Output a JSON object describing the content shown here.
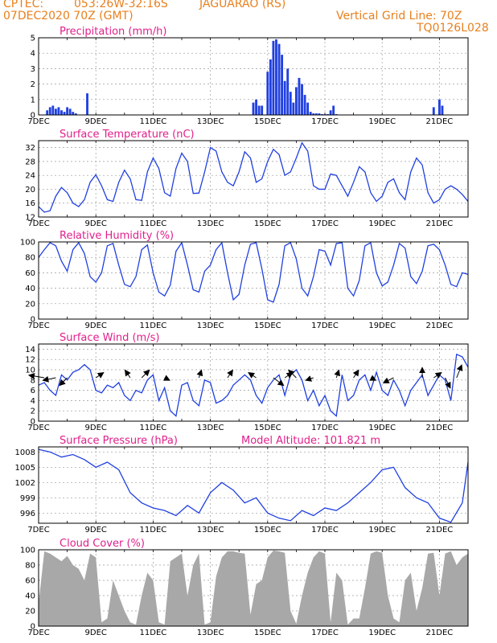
{
  "header": {
    "org": "CPTEC:",
    "coords": "053:26W-32:16S",
    "station": "JAGUARAO (RS)",
    "date": "07DEC2020 70Z (GMT)",
    "grid_note": "Vertical Grid Line: 70Z",
    "model_code": "TQ0126L028",
    "model_altitude": "Model Altitude: 101.821 m"
  },
  "colors": {
    "header": "#e8801e",
    "title": "#e0208c",
    "line": "#2040e0",
    "bar": "#2040e0",
    "cloud": "#a8a8a8",
    "arrow": "#000000"
  },
  "x_ticks": [
    "7DEC",
    "9DEC",
    "11DEC",
    "13DEC",
    "15DEC",
    "17DEC",
    "19DEC",
    "21DEC"
  ],
  "chart_data": [
    {
      "type": "bar",
      "title": "Precipitation (mm/h)",
      "ylim": [
        0,
        5
      ],
      "y_ticks": [
        "0",
        "1",
        "2",
        "3",
        "4",
        "5"
      ],
      "x_unit": "day offset from 7DEC 00Z",
      "x": [
        0.3,
        0.4,
        0.5,
        0.6,
        0.7,
        0.8,
        0.9,
        1.0,
        1.1,
        1.2,
        1.3,
        1.7,
        7.5,
        7.6,
        7.7,
        7.8,
        8.0,
        8.1,
        8.2,
        8.3,
        8.4,
        8.5,
        8.6,
        8.7,
        8.8,
        8.9,
        9.0,
        9.1,
        9.2,
        9.3,
        9.4,
        9.5,
        9.6,
        9.7,
        9.8,
        9.9,
        10.0,
        10.1,
        10.2,
        10.3,
        10.4,
        13.8,
        14.0,
        14.1
      ],
      "values": [
        0.3,
        0.5,
        0.6,
        0.4,
        0.5,
        0.3,
        0.2,
        0.5,
        0.4,
        0.2,
        0.1,
        1.4,
        0.8,
        1.0,
        0.6,
        0.6,
        2.8,
        3.6,
        4.8,
        4.9,
        4.6,
        3.9,
        2.2,
        3.0,
        1.5,
        0.8,
        1.8,
        2.4,
        2.0,
        1.3,
        0.8,
        0.2,
        0.1,
        0.1,
        0.1,
        0.05,
        0.05,
        0.05,
        0.3,
        0.6,
        0.05,
        0.5,
        1.0,
        0.6
      ]
    },
    {
      "type": "line",
      "title": "Surface Temperature (nC)",
      "ylim": [
        12,
        34
      ],
      "y_ticks": [
        "12",
        "16",
        "20",
        "24",
        "28",
        "32"
      ],
      "x": [
        0,
        0.2,
        0.4,
        0.6,
        0.8,
        1.0,
        1.2,
        1.4,
        1.6,
        1.8,
        2.0,
        2.2,
        2.4,
        2.6,
        2.8,
        3.0,
        3.2,
        3.4,
        3.6,
        3.8,
        4.0,
        4.2,
        4.4,
        4.6,
        4.8,
        5.0,
        5.2,
        5.4,
        5.6,
        5.8,
        6.0,
        6.2,
        6.4,
        6.6,
        6.8,
        7.0,
        7.2,
        7.4,
        7.6,
        7.8,
        8.0,
        8.2,
        8.4,
        8.6,
        8.8,
        9.0,
        9.2,
        9.4,
        9.6,
        9.8,
        10.0,
        10.2,
        10.4,
        10.6,
        10.8,
        11.0,
        11.2,
        11.4,
        11.6,
        11.8,
        12.0,
        12.2,
        12.4,
        12.6,
        12.8,
        13.0,
        13.2,
        13.4,
        13.6,
        13.8,
        14.0,
        14.2,
        14.4,
        14.6,
        14.8,
        15.0
      ],
      "values": [
        15,
        13.4,
        13.8,
        18,
        20.5,
        19,
        16,
        15,
        17,
        22,
        24.2,
        21,
        17,
        16.5,
        22,
        25.5,
        23,
        17,
        16.8,
        25,
        29,
        26,
        19,
        18,
        26,
        30.4,
        28,
        18.8,
        18.9,
        25,
        32,
        31,
        25,
        22,
        21,
        25,
        30.8,
        29,
        22,
        23,
        28,
        31.5,
        30,
        24,
        25,
        29,
        33.4,
        31,
        21,
        20,
        20,
        24.4,
        24,
        21,
        18,
        22,
        26.5,
        25,
        19,
        16.5,
        18,
        22,
        23,
        19,
        17,
        25,
        29,
        27,
        19,
        16,
        17,
        20,
        21,
        20,
        18.5,
        16.5
      ]
    },
    {
      "type": "line",
      "title": "Relative Humidity (%)",
      "ylim": [
        0,
        100
      ],
      "y_ticks": [
        "0",
        "20",
        "40",
        "60",
        "80",
        "100"
      ],
      "x": [
        0,
        0.2,
        0.4,
        0.6,
        0.8,
        1.0,
        1.2,
        1.4,
        1.6,
        1.8,
        2.0,
        2.2,
        2.4,
        2.6,
        2.8,
        3.0,
        3.2,
        3.4,
        3.6,
        3.8,
        4.0,
        4.2,
        4.4,
        4.6,
        4.8,
        5.0,
        5.2,
        5.4,
        5.6,
        5.8,
        6.0,
        6.2,
        6.4,
        6.6,
        6.8,
        7.0,
        7.2,
        7.4,
        7.6,
        7.8,
        8.0,
        8.2,
        8.4,
        8.6,
        8.8,
        9.0,
        9.2,
        9.4,
        9.6,
        9.8,
        10.0,
        10.2,
        10.4,
        10.6,
        10.8,
        11.0,
        11.2,
        11.4,
        11.6,
        11.8,
        12.0,
        12.2,
        12.4,
        12.6,
        12.8,
        13.0,
        13.2,
        13.4,
        13.6,
        13.8,
        14.0,
        14.2,
        14.4,
        14.6,
        14.8,
        15.0
      ],
      "values": [
        80,
        90,
        99,
        95,
        75,
        62,
        90,
        99,
        85,
        55,
        48,
        60,
        95,
        98,
        70,
        45,
        42,
        55,
        90,
        96,
        60,
        35,
        30,
        44,
        88,
        99,
        70,
        38,
        35,
        62,
        70,
        90,
        99,
        60,
        25,
        32,
        70,
        97,
        99,
        65,
        25,
        22,
        45,
        95,
        99,
        78,
        40,
        30,
        55,
        90,
        88,
        70,
        98,
        99,
        40,
        30,
        50,
        95,
        99,
        60,
        43,
        48,
        70,
        98,
        92,
        55,
        46,
        62,
        95,
        97,
        90,
        70,
        45,
        42,
        60,
        58
      ]
    },
    {
      "type": "line",
      "title": "Surface Wind (m/s)",
      "ylim": [
        0,
        15
      ],
      "y_ticks": [
        "0",
        "2",
        "4",
        "6",
        "8",
        "10",
        "12",
        "14"
      ],
      "x": [
        0,
        0.2,
        0.4,
        0.6,
        0.8,
        1.0,
        1.2,
        1.4,
        1.6,
        1.8,
        2.0,
        2.2,
        2.4,
        2.6,
        2.8,
        3.0,
        3.2,
        3.4,
        3.6,
        3.8,
        4.0,
        4.2,
        4.4,
        4.6,
        4.8,
        5.0,
        5.2,
        5.4,
        5.6,
        5.8,
        6.0,
        6.2,
        6.4,
        6.6,
        6.8,
        7.0,
        7.2,
        7.4,
        7.6,
        7.8,
        8.0,
        8.2,
        8.4,
        8.6,
        8.8,
        9.0,
        9.2,
        9.4,
        9.6,
        9.8,
        10.0,
        10.2,
        10.4,
        10.6,
        10.8,
        11.0,
        11.2,
        11.4,
        11.6,
        11.8,
        12.0,
        12.2,
        12.4,
        12.6,
        12.8,
        13.0,
        13.2,
        13.4,
        13.6,
        13.8,
        14.0,
        14.2,
        14.4,
        14.6,
        14.8,
        15.0
      ],
      "values": [
        7,
        7.5,
        6,
        5,
        9,
        8,
        9.5,
        10,
        11,
        10,
        6,
        5.5,
        7,
        6.5,
        7.5,
        5,
        4,
        6,
        5.5,
        8,
        9,
        4,
        6.5,
        2,
        1,
        7,
        7.5,
        4,
        3,
        8,
        7.5,
        3.5,
        4,
        5,
        7,
        8,
        9,
        8,
        5,
        3.5,
        6.5,
        8,
        9,
        5,
        9,
        10,
        8,
        4,
        6,
        3,
        5,
        2,
        1,
        9,
        4,
        5,
        8,
        9,
        6,
        9.5,
        6,
        5,
        8,
        6,
        3,
        6,
        7.5,
        9,
        5,
        7,
        9,
        8,
        4,
        13,
        12.5,
        10.5
      ],
      "arrows_unit": "(u, v) m/s",
      "arrows_x": [
        0.2,
        0.6,
        1.0,
        2.0,
        3.2,
        3.6,
        4.4,
        5.6,
        6.6,
        7.6,
        8.2,
        8.6,
        9.0,
        9.6,
        10.4,
        11.0,
        11.6,
        12.4,
        13.4,
        13.8,
        14.2,
        14.6
      ],
      "arrows_u": [
        -6,
        -5,
        -3,
        3,
        -2,
        3,
        2,
        1,
        2,
        -3,
        4,
        3,
        -3,
        -3,
        1,
        2,
        2,
        -4,
        0,
        3,
        2,
        2
      ],
      "arrows_v": [
        1,
        -1,
        -3,
        2,
        3,
        3,
        -1,
        3,
        3,
        2,
        -3,
        2,
        3,
        -1,
        3,
        3,
        -1,
        -2,
        4,
        2,
        -4,
        5
      ]
    },
    {
      "type": "line",
      "title": "Surface Pressure (hPa)",
      "ylim": [
        994,
        1009
      ],
      "y_ticks": [
        "996",
        "999",
        "1002",
        "1005",
        "1008"
      ],
      "x": [
        0,
        0.4,
        0.8,
        1.2,
        1.6,
        2.0,
        2.4,
        2.8,
        3.2,
        3.6,
        4.0,
        4.4,
        4.8,
        5.2,
        5.6,
        6.0,
        6.4,
        6.8,
        7.2,
        7.6,
        8.0,
        8.4,
        8.8,
        9.2,
        9.6,
        10.0,
        10.4,
        10.8,
        11.2,
        11.6,
        12.0,
        12.4,
        12.8,
        13.2,
        13.6,
        14.0,
        14.4,
        14.8,
        15.0
      ],
      "values": [
        1008.5,
        1008,
        1007,
        1007.5,
        1006.5,
        1005,
        1006,
        1004.5,
        1000,
        998,
        997,
        996.5,
        995.5,
        997.5,
        996,
        1000,
        1002,
        1000.5,
        998,
        999,
        996,
        995,
        994.5,
        996.5,
        995.5,
        997,
        996.5,
        998,
        1000,
        1002,
        1004.5,
        1005,
        1001,
        999,
        998,
        995,
        994.2,
        998,
        1006
      ]
    },
    {
      "type": "area",
      "title": "Cloud Cover (%)",
      "ylim": [
        0,
        100
      ],
      "y_ticks": [
        "0",
        "20",
        "40",
        "60",
        "80",
        "100"
      ],
      "x": [
        0,
        0.2,
        0.4,
        0.6,
        0.8,
        1.0,
        1.2,
        1.4,
        1.6,
        1.8,
        2.0,
        2.2,
        2.4,
        2.6,
        2.8,
        3.0,
        3.2,
        3.4,
        3.6,
        3.8,
        4.0,
        4.2,
        4.4,
        4.6,
        4.8,
        5.0,
        5.2,
        5.4,
        5.6,
        5.8,
        6.0,
        6.2,
        6.4,
        6.6,
        6.8,
        7.0,
        7.2,
        7.4,
        7.6,
        7.8,
        8.0,
        8.2,
        8.4,
        8.6,
        8.8,
        9.0,
        9.2,
        9.4,
        9.6,
        9.8,
        10.0,
        10.2,
        10.4,
        10.6,
        10.8,
        11.0,
        11.2,
        11.4,
        11.6,
        11.8,
        12.0,
        12.2,
        12.4,
        12.6,
        12.8,
        13.0,
        13.2,
        13.4,
        13.6,
        13.8,
        14.0,
        14.2,
        14.4,
        14.6,
        14.8,
        15.0
      ],
      "values": [
        30,
        98,
        95,
        90,
        85,
        92,
        80,
        75,
        60,
        95,
        90,
        5,
        10,
        60,
        40,
        20,
        5,
        2,
        40,
        70,
        60,
        5,
        2,
        85,
        90,
        95,
        40,
        80,
        95,
        2,
        5,
        65,
        90,
        98,
        98,
        96,
        95,
        15,
        55,
        60,
        90,
        99,
        98,
        96,
        20,
        3,
        40,
        70,
        90,
        98,
        95,
        5,
        70,
        60,
        2,
        10,
        10,
        50,
        95,
        98,
        96,
        40,
        10,
        5,
        60,
        70,
        20,
        50,
        95,
        96,
        40,
        95,
        98,
        80,
        90,
        95
      ]
    }
  ]
}
